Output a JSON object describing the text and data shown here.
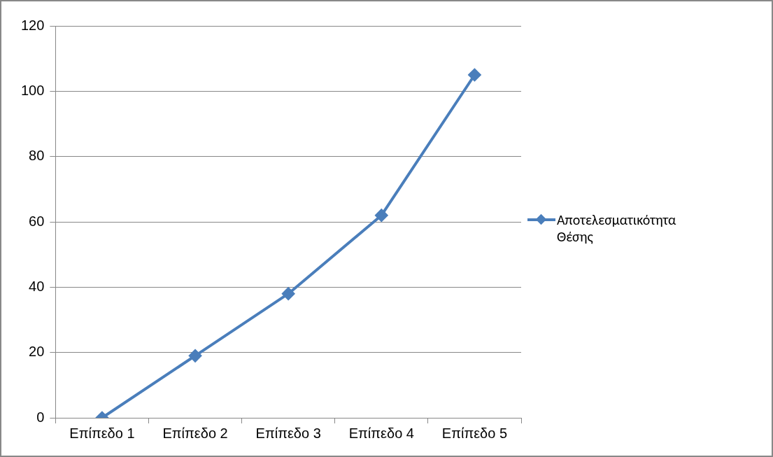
{
  "chart_data": {
    "type": "line",
    "categories": [
      "Επίπεδο 1",
      "Επίπεδο 2",
      "Επίπεδο 3",
      "Επίπεδο 4",
      "Επίπεδο 5"
    ],
    "series": [
      {
        "name": "Αποτελεσματικότητα Θέσης",
        "color": "#4a7ebb",
        "values": [
          0,
          19,
          38,
          62,
          105
        ]
      }
    ],
    "ylim": [
      0,
      120
    ],
    "yticks": [
      0,
      20,
      40,
      60,
      80,
      100,
      120
    ],
    "grid": "y",
    "legend": "right",
    "marker": "diamond",
    "line_style": "solid"
  }
}
